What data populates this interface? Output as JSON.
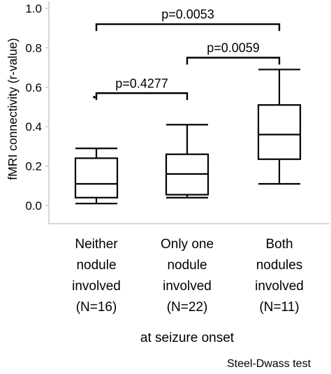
{
  "chart_data": {
    "type": "box",
    "ylabel": "fMRI connectivity (r-value)",
    "xlabel": "at seizure onset",
    "footnote": "Steel-Dwass test",
    "ylim": [
      0.0,
      1.0
    ],
    "yticks": [
      "0.0",
      "0.2",
      "0.4",
      "0.6",
      "0.8",
      "1.0"
    ],
    "yticks_values": [
      0.0,
      0.2,
      0.4,
      0.6,
      0.8,
      1.0
    ],
    "grid": false,
    "categories": [
      {
        "lines": [
          "Neither",
          "nodule",
          "involved",
          "(N=16)"
        ]
      },
      {
        "lines": [
          "Only one",
          "nodule",
          "involved",
          "(N=22)"
        ]
      },
      {
        "lines": [
          "Both",
          "nodules",
          "involved",
          "(N=11)"
        ]
      }
    ],
    "boxes": [
      {
        "min": 0.01,
        "q1": 0.04,
        "median": 0.11,
        "q3": 0.24,
        "max": 0.29,
        "outliers": [
          0.55
        ]
      },
      {
        "min": 0.04,
        "q1": 0.055,
        "median": 0.16,
        "q3": 0.26,
        "max": 0.41,
        "outliers": []
      },
      {
        "min": 0.11,
        "q1": 0.235,
        "median": 0.36,
        "q3": 0.51,
        "max": 0.69,
        "outliers": []
      }
    ],
    "comparisons": [
      {
        "pair": [
          0,
          1
        ],
        "label": "p=0.4277",
        "bracket_y": 0.57,
        "drop_to": 0.535
      },
      {
        "pair": [
          1,
          2
        ],
        "label": "p=0.0059",
        "bracket_y": 0.75,
        "drop_to": 0.715
      },
      {
        "pair": [
          0,
          2
        ],
        "label": "p=0.0053",
        "bracket_y": 0.92,
        "drop_to": 0.885
      }
    ]
  }
}
